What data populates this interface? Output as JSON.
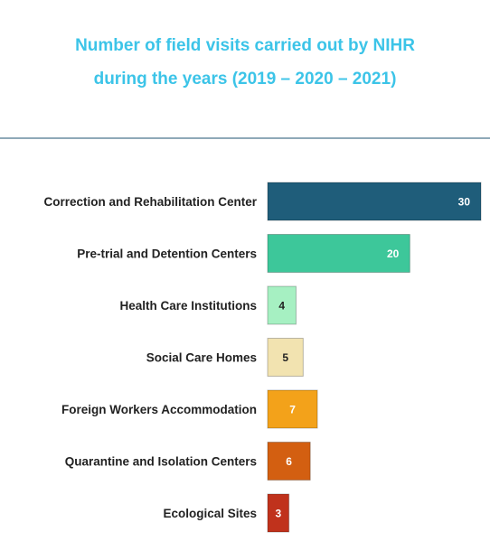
{
  "chart_data": {
    "type": "bar",
    "orientation": "horizontal",
    "title": "Number of field visits carried out by NIHR during the years (2019 – 2020 – 2021)",
    "title_lines": [
      "Number of field visits carried out by NIHR",
      "during the years (2019 – 2020 – 2021)"
    ],
    "categories": [
      "Correction and Rehabilitation Center",
      "Pre-trial and Detention Centers",
      "Health Care Institutions",
      "Social Care Homes",
      "Foreign Workers Accommodation",
      "Quarantine and Isolation Centers",
      "Ecological Sites"
    ],
    "values": [
      30,
      20,
      4,
      5,
      7,
      6,
      3
    ],
    "colors": [
      "#1f5d7a",
      "#3dc79a",
      "#a6f0c2",
      "#f2e3b0",
      "#f3a21a",
      "#d35f11",
      "#c0321c"
    ],
    "label_colors": [
      "#ffffff",
      "#ffffff",
      "#222222",
      "#222222",
      "#ffffff",
      "#ffffff",
      "#ffffff"
    ],
    "xlim": [
      0,
      30
    ],
    "grid": false,
    "legend": "none"
  }
}
